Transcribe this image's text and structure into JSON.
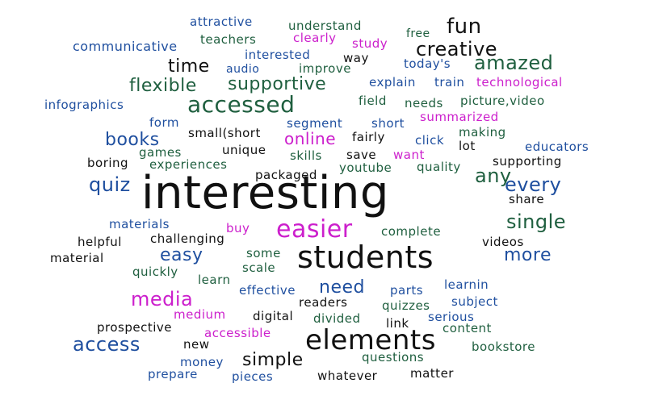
{
  "colors": {
    "black": "#111111",
    "green": "#1f5f3f",
    "blue": "#1f4f9f",
    "magenta": "#cc1fcc"
  },
  "words": [
    {
      "text": "attractive",
      "color": "#1f4f9f"
    },
    {
      "text": "understand",
      "color": "#1f5f3f"
    },
    {
      "text": "fun",
      "color": "#111111"
    },
    {
      "text": "teachers",
      "color": "#1f5f3f"
    },
    {
      "text": "clearly",
      "color": "#cc1fcc"
    },
    {
      "text": "free",
      "color": "#1f5f3f"
    },
    {
      "text": "communicative",
      "color": "#1f4f9f"
    },
    {
      "text": "study",
      "color": "#cc1fcc"
    },
    {
      "text": "creative",
      "color": "#111111"
    },
    {
      "text": "interested",
      "color": "#1f4f9f"
    },
    {
      "text": "way",
      "color": "#111111"
    },
    {
      "text": "amazed",
      "color": "#1f5f3f"
    },
    {
      "text": "time",
      "color": "#111111"
    },
    {
      "text": "audio",
      "color": "#1f4f9f"
    },
    {
      "text": "improve",
      "color": "#1f5f3f"
    },
    {
      "text": "today's",
      "color": "#1f4f9f"
    },
    {
      "text": "flexible",
      "color": "#1f5f3f"
    },
    {
      "text": "supportive",
      "color": "#1f5f3f"
    },
    {
      "text": "explain",
      "color": "#1f4f9f"
    },
    {
      "text": "train",
      "color": "#1f4f9f"
    },
    {
      "text": "technological",
      "color": "#cc1fcc"
    },
    {
      "text": "infographics",
      "color": "#1f4f9f"
    },
    {
      "text": "accessed",
      "color": "#1f5f3f"
    },
    {
      "text": "field",
      "color": "#1f5f3f"
    },
    {
      "text": "needs",
      "color": "#1f5f3f"
    },
    {
      "text": "picture,video",
      "color": "#1f5f3f"
    },
    {
      "text": "form",
      "color": "#1f4f9f"
    },
    {
      "text": "segment",
      "color": "#1f4f9f"
    },
    {
      "text": "short",
      "color": "#1f4f9f"
    },
    {
      "text": "summarized",
      "color": "#cc1fcc"
    },
    {
      "text": "books",
      "color": "#1f4f9f"
    },
    {
      "text": "small(short",
      "color": "#111111"
    },
    {
      "text": "making",
      "color": "#1f5f3f"
    },
    {
      "text": "online",
      "color": "#cc1fcc"
    },
    {
      "text": "fairly",
      "color": "#111111"
    },
    {
      "text": "click",
      "color": "#1f4f9f"
    },
    {
      "text": "games",
      "color": "#1f5f3f"
    },
    {
      "text": "unique",
      "color": "#111111"
    },
    {
      "text": "lot",
      "color": "#111111"
    },
    {
      "text": "educators",
      "color": "#1f4f9f"
    },
    {
      "text": "skills",
      "color": "#1f5f3f"
    },
    {
      "text": "save",
      "color": "#111111"
    },
    {
      "text": "want",
      "color": "#cc1fcc"
    },
    {
      "text": "boring",
      "color": "#111111"
    },
    {
      "text": "experiences",
      "color": "#1f5f3f"
    },
    {
      "text": "youtube",
      "color": "#1f5f3f"
    },
    {
      "text": "quality",
      "color": "#1f5f3f"
    },
    {
      "text": "supporting",
      "color": "#111111"
    },
    {
      "text": "packaged",
      "color": "#111111"
    },
    {
      "text": "any",
      "color": "#1f5f3f"
    },
    {
      "text": "every",
      "color": "#1f4f9f"
    },
    {
      "text": "quiz",
      "color": "#1f4f9f"
    },
    {
      "text": "interesting",
      "color": "#111111"
    },
    {
      "text": "share",
      "color": "#111111"
    },
    {
      "text": "single",
      "color": "#1f5f3f"
    },
    {
      "text": "materials",
      "color": "#1f4f9f"
    },
    {
      "text": "buy",
      "color": "#cc1fcc"
    },
    {
      "text": "easier",
      "color": "#cc1fcc"
    },
    {
      "text": "complete",
      "color": "#1f5f3f"
    },
    {
      "text": "helpful",
      "color": "#111111"
    },
    {
      "text": "challenging",
      "color": "#111111"
    },
    {
      "text": "videos",
      "color": "#111111"
    },
    {
      "text": "material",
      "color": "#111111"
    },
    {
      "text": "easy",
      "color": "#1f4f9f"
    },
    {
      "text": "some",
      "color": "#1f5f3f"
    },
    {
      "text": "students",
      "color": "#111111"
    },
    {
      "text": "more",
      "color": "#1f4f9f"
    },
    {
      "text": "quickly",
      "color": "#1f5f3f"
    },
    {
      "text": "scale",
      "color": "#1f5f3f"
    },
    {
      "text": "learn",
      "color": "#1f5f3f"
    },
    {
      "text": "effective",
      "color": "#1f4f9f"
    },
    {
      "text": "need",
      "color": "#1f4f9f"
    },
    {
      "text": "parts",
      "color": "#1f4f9f"
    },
    {
      "text": "learnin",
      "color": "#1f4f9f"
    },
    {
      "text": "media",
      "color": "#cc1fcc"
    },
    {
      "text": "readers",
      "color": "#111111"
    },
    {
      "text": "quizzes",
      "color": "#1f5f3f"
    },
    {
      "text": "subject",
      "color": "#1f4f9f"
    },
    {
      "text": "medium",
      "color": "#cc1fcc"
    },
    {
      "text": "digital",
      "color": "#111111"
    },
    {
      "text": "divided",
      "color": "#1f5f3f"
    },
    {
      "text": "serious",
      "color": "#1f4f9f"
    },
    {
      "text": "prospective",
      "color": "#111111"
    },
    {
      "text": "link",
      "color": "#111111"
    },
    {
      "text": "content",
      "color": "#1f5f3f"
    },
    {
      "text": "accessible",
      "color": "#cc1fcc"
    },
    {
      "text": "elements",
      "color": "#111111"
    },
    {
      "text": "access",
      "color": "#1f4f9f"
    },
    {
      "text": "new",
      "color": "#111111"
    },
    {
      "text": "bookstore",
      "color": "#1f5f3f"
    },
    {
      "text": "simple",
      "color": "#111111"
    },
    {
      "text": "questions",
      "color": "#1f5f3f"
    },
    {
      "text": "money",
      "color": "#1f4f9f"
    },
    {
      "text": "prepare",
      "color": "#1f4f9f"
    },
    {
      "text": "pieces",
      "color": "#1f4f9f"
    },
    {
      "text": "whatever",
      "color": "#111111"
    },
    {
      "text": "matter",
      "color": "#111111"
    }
  ]
}
